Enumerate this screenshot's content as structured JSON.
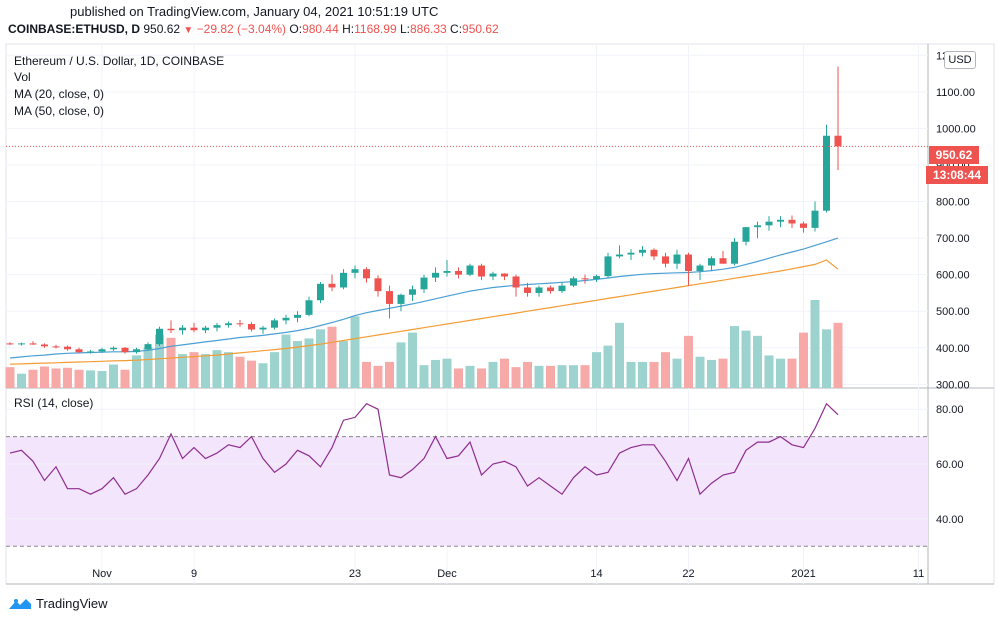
{
  "header": {
    "published": "published on TradingView.com, January 04, 2021 10:51:19 UTC"
  },
  "ticker": {
    "symbol": "COINBASE:ETHUSD, D",
    "price": "950.62",
    "change": "−29.82 (−3.04%)",
    "open_label": "O:",
    "open": "980.44",
    "high_label": "H:",
    "high": "1168.99",
    "low_label": "L:",
    "low": "886.33",
    "close_label": "C:",
    "close": "950.62"
  },
  "legend": {
    "title": "Ethereum / U.S. Dollar, 1D, COINBASE",
    "vol": "Vol",
    "ma20": "MA (20, close, 0)",
    "ma50": "MA (50, close, 0)",
    "rsi": "RSI (14, close)"
  },
  "currency_button": "USD",
  "last_price_tag": "950.62",
  "countdown_tag": "13:08:44",
  "footer": {
    "brand": "TradingView"
  },
  "colors": {
    "up": "#26a69a",
    "down": "#ef5350",
    "vol_up": "#9cd3ce",
    "vol_down": "#f6a9a7",
    "ma20": "#4a9fd4",
    "ma50": "#f39c34",
    "rsi_line": "#8e2d8f",
    "rsi_band": "#f3e5fb"
  },
  "chart_data": [
    {
      "type": "candlestick",
      "title": "Ethereum / U.S. Dollar, 1D, COINBASE",
      "y_ticks": [
        "300.00",
        "400.00",
        "500.00",
        "600.00",
        "700.00",
        "800.00",
        "900.00",
        "1000.00",
        "1100.00",
        "1200.00"
      ],
      "ylim": [
        290,
        1220
      ],
      "x_ticks": [
        {
          "i": 8,
          "label": "Nov"
        },
        {
          "i": 16,
          "label": "9"
        },
        {
          "i": 30,
          "label": "23"
        },
        {
          "i": 38,
          "label": "Dec"
        },
        {
          "i": 51,
          "label": "14"
        },
        {
          "i": 59,
          "label": "22"
        },
        {
          "i": 69,
          "label": "2021"
        },
        {
          "i": 79,
          "label": "11"
        }
      ],
      "candles": [
        [
          412,
          415,
          408,
          410
        ],
        [
          410,
          414,
          406,
          412
        ],
        [
          412,
          418,
          408,
          409
        ],
        [
          409,
          412,
          400,
          404
        ],
        [
          404,
          408,
          398,
          403
        ],
        [
          403,
          406,
          392,
          396
        ],
        [
          396,
          400,
          385,
          388
        ],
        [
          388,
          394,
          384,
          390
        ],
        [
          390,
          400,
          386,
          396
        ],
        [
          396,
          404,
          392,
          400
        ],
        [
          400,
          402,
          384,
          388
        ],
        [
          388,
          400,
          384,
          396
        ],
        [
          396,
          415,
          392,
          410
        ],
        [
          410,
          458,
          405,
          452
        ],
        [
          452,
          475,
          440,
          448
        ],
        [
          448,
          462,
          436,
          455
        ],
        [
          455,
          468,
          442,
          448
        ],
        [
          448,
          460,
          440,
          455
        ],
        [
          455,
          468,
          445,
          462
        ],
        [
          462,
          472,
          455,
          467
        ],
        [
          467,
          476,
          458,
          465
        ],
        [
          465,
          470,
          445,
          450
        ],
        [
          450,
          460,
          438,
          455
        ],
        [
          455,
          480,
          450,
          475
        ],
        [
          475,
          490,
          464,
          482
        ],
        [
          482,
          500,
          470,
          490
        ],
        [
          490,
          540,
          486,
          530
        ],
        [
          530,
          580,
          522,
          575
        ],
        [
          575,
          600,
          555,
          565
        ],
        [
          565,
          615,
          560,
          605
        ],
        [
          605,
          625,
          590,
          615
        ],
        [
          615,
          620,
          578,
          590
        ],
        [
          590,
          598,
          540,
          555
        ],
        [
          555,
          570,
          480,
          520
        ],
        [
          520,
          548,
          500,
          545
        ],
        [
          545,
          570,
          528,
          560
        ],
        [
          560,
          600,
          550,
          592
        ],
        [
          592,
          620,
          580,
          605
        ],
        [
          605,
          640,
          595,
          610
        ],
        [
          610,
          620,
          590,
          600
        ],
        [
          600,
          630,
          596,
          625
        ],
        [
          625,
          630,
          585,
          595
        ],
        [
          595,
          608,
          585,
          603
        ],
        [
          603,
          604,
          585,
          595
        ],
        [
          595,
          600,
          540,
          565
        ],
        [
          565,
          578,
          540,
          550
        ],
        [
          550,
          570,
          540,
          565
        ],
        [
          565,
          570,
          548,
          555
        ],
        [
          555,
          578,
          550,
          570
        ],
        [
          570,
          595,
          566,
          590
        ],
        [
          590,
          600,
          575,
          588
        ],
        [
          588,
          600,
          580,
          596
        ],
        [
          596,
          660,
          590,
          650
        ],
        [
          650,
          680,
          645,
          655
        ],
        [
          655,
          670,
          640,
          660
        ],
        [
          660,
          678,
          650,
          668
        ],
        [
          668,
          672,
          640,
          650
        ],
        [
          650,
          660,
          620,
          630
        ],
        [
          630,
          668,
          615,
          655
        ],
        [
          655,
          660,
          570,
          610
        ],
        [
          610,
          630,
          585,
          625
        ],
        [
          625,
          650,
          610,
          645
        ],
        [
          645,
          665,
          630,
          630
        ],
        [
          630,
          700,
          625,
          690
        ],
        [
          690,
          730,
          680,
          730
        ],
        [
          730,
          745,
          700,
          735
        ],
        [
          735,
          760,
          720,
          745
        ],
        [
          745,
          760,
          730,
          750
        ],
        [
          750,
          762,
          728,
          740
        ],
        [
          740,
          745,
          715,
          728
        ],
        [
          728,
          800,
          718,
          775
        ],
        [
          775,
          1010,
          770,
          980
        ],
        [
          980,
          1169,
          886,
          951
        ]
      ],
      "volume_relative": [
        0.32,
        0.22,
        0.28,
        0.33,
        0.3,
        0.31,
        0.28,
        0.27,
        0.26,
        0.36,
        0.28,
        0.5,
        0.62,
        0.82,
        0.77,
        0.52,
        0.55,
        0.52,
        0.58,
        0.55,
        0.48,
        0.42,
        0.38,
        0.55,
        0.82,
        0.72,
        0.76,
        0.9,
        0.94,
        0.72,
        1.1,
        0.4,
        0.34,
        0.4,
        0.7,
        0.85,
        0.35,
        0.43,
        0.45,
        0.3,
        0.34,
        0.3,
        0.4,
        0.45,
        0.32,
        0.4,
        0.34,
        0.34,
        0.35,
        0.35,
        0.35,
        0.55,
        0.65,
        1.0,
        0.4,
        0.4,
        0.4,
        0.55,
        0.45,
        0.8,
        0.48,
        0.43,
        0.45,
        0.95,
        0.88,
        0.8,
        0.5,
        0.45,
        0.45,
        0.85,
        1.35,
        0.9,
        1.0
      ],
      "ma20": [
        372,
        375,
        378,
        380,
        383,
        385,
        386,
        387,
        388,
        389,
        389,
        390,
        393,
        398,
        404,
        408,
        412,
        416,
        420,
        424,
        428,
        431,
        434,
        438,
        442,
        447,
        453,
        461,
        469,
        478,
        488,
        496,
        502,
        508,
        514,
        520,
        527,
        534,
        541,
        548,
        555,
        560,
        565,
        568,
        571,
        573,
        575,
        577,
        579,
        581,
        584,
        587,
        591,
        595,
        598,
        601,
        603,
        604,
        605,
        606,
        608,
        611,
        615,
        620,
        628,
        636,
        645,
        654,
        662,
        670,
        680,
        690,
        700
      ],
      "ma50": [
        355,
        356,
        357,
        358,
        359,
        360,
        361,
        362,
        363,
        364,
        365,
        366,
        368,
        370,
        372,
        374,
        376,
        378,
        380,
        383,
        386,
        389,
        392,
        395,
        398,
        402,
        406,
        410,
        415,
        420,
        425,
        430,
        435,
        440,
        445,
        450,
        455,
        460,
        465,
        470,
        475,
        480,
        485,
        490,
        495,
        500,
        505,
        510,
        515,
        520,
        525,
        530,
        535,
        540,
        545,
        550,
        555,
        560,
        565,
        570,
        575,
        580,
        585,
        590,
        595,
        600,
        605,
        610,
        616,
        622,
        628,
        640,
        615
      ]
    },
    {
      "type": "line",
      "title": "RSI (14, close)",
      "y_ticks": [
        "40.00",
        "60.00",
        "80.00"
      ],
      "ylim": [
        25,
        87
      ],
      "band": [
        30,
        70
      ],
      "values": [
        64,
        65,
        61,
        54,
        59,
        51,
        51,
        49,
        51,
        55,
        49,
        51,
        56,
        62,
        71,
        62,
        66,
        62,
        64,
        67,
        66,
        70,
        62,
        57,
        60,
        65,
        63,
        59,
        66,
        76,
        77,
        82,
        80,
        56,
        55,
        58,
        62,
        70,
        62,
        63,
        68,
        56,
        60,
        61,
        59,
        52,
        55,
        52,
        49,
        55,
        59,
        56,
        57,
        64,
        66,
        67,
        67,
        61,
        54,
        62,
        49,
        53,
        56,
        57,
        65,
        68,
        68,
        70,
        67,
        66,
        73,
        82,
        78
      ]
    }
  ]
}
